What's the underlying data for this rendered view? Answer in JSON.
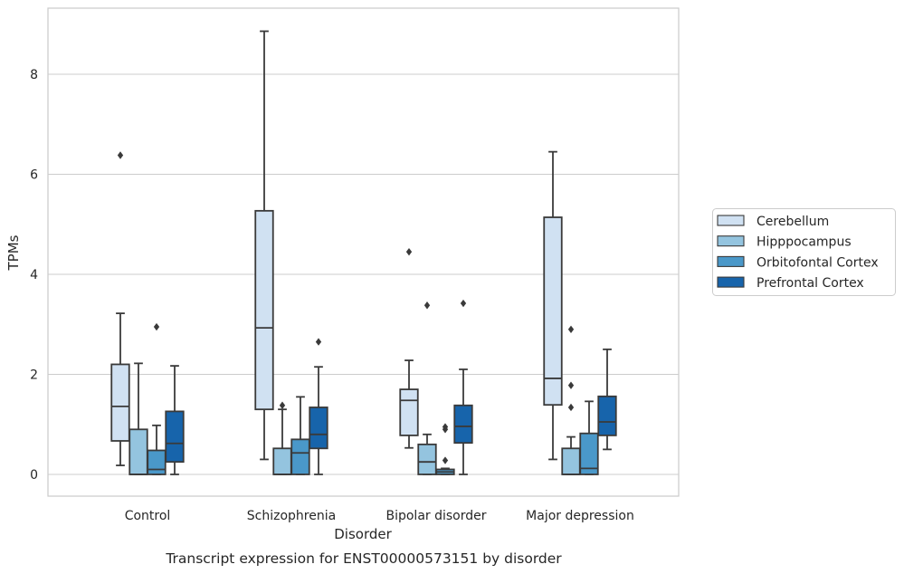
{
  "chart_data": {
    "type": "box",
    "title": "",
    "caption": "Transcript expression for ENST00000573151 by disorder",
    "xlabel": "Disorder",
    "ylabel": "TPMs",
    "ylim": [
      -0.43,
      9.3
    ],
    "yticks": [
      0,
      2,
      4,
      6,
      8
    ],
    "grid": "horizontal",
    "legend_position": "right",
    "categories": [
      "Control",
      "Schizophrenia",
      "Bipolar disorder",
      "Major depression"
    ],
    "series": [
      {
        "name": "Cerebellum",
        "color": "#d0e1f2",
        "boxes": [
          {
            "whislo": 0.18,
            "q1": 0.67,
            "med": 1.36,
            "q3": 2.2,
            "whishi": 3.22,
            "fliers": [
              6.38
            ]
          },
          {
            "whislo": 0.3,
            "q1": 1.3,
            "med": 2.93,
            "q3": 5.27,
            "whishi": 8.86,
            "fliers": []
          },
          {
            "whislo": 0.53,
            "q1": 0.78,
            "med": 1.48,
            "q3": 1.7,
            "whishi": 2.28,
            "fliers": [
              4.45
            ]
          },
          {
            "whislo": 0.3,
            "q1": 1.39,
            "med": 1.92,
            "q3": 5.14,
            "whishi": 6.45,
            "fliers": []
          }
        ]
      },
      {
        "name": "Hipppocampus",
        "color": "#94c4df",
        "boxes": [
          {
            "whislo": 0.0,
            "q1": 0.0,
            "med": 0.0,
            "q3": 0.9,
            "whishi": 2.22,
            "fliers": []
          },
          {
            "whislo": 0.0,
            "q1": 0.0,
            "med": 0.0,
            "q3": 0.52,
            "whishi": 1.3,
            "fliers": [
              1.38
            ]
          },
          {
            "whislo": 0.0,
            "q1": 0.0,
            "med": 0.25,
            "q3": 0.6,
            "whishi": 0.8,
            "fliers": [
              3.38
            ]
          },
          {
            "whislo": 0.0,
            "q1": 0.0,
            "med": 0.0,
            "q3": 0.52,
            "whishi": 0.75,
            "fliers": [
              1.34,
              1.78,
              2.9
            ]
          }
        ]
      },
      {
        "name": "Orbitofontal Cortex",
        "color": "#4a98c9",
        "boxes": [
          {
            "whislo": 0.0,
            "q1": 0.0,
            "med": 0.1,
            "q3": 0.48,
            "whishi": 0.98,
            "fliers": [
              2.95
            ]
          },
          {
            "whislo": 0.0,
            "q1": 0.0,
            "med": 0.43,
            "q3": 0.7,
            "whishi": 1.55,
            "fliers": []
          },
          {
            "whislo": 0.0,
            "q1": 0.0,
            "med": 0.05,
            "q3": 0.1,
            "whishi": 0.12,
            "fliers": [
              0.28,
              0.9,
              0.95
            ]
          },
          {
            "whislo": 0.0,
            "q1": 0.0,
            "med": 0.12,
            "q3": 0.82,
            "whishi": 1.46,
            "fliers": []
          }
        ]
      },
      {
        "name": "Prefrontal Cortex",
        "color": "#1764ab",
        "boxes": [
          {
            "whislo": 0.0,
            "q1": 0.25,
            "med": 0.62,
            "q3": 1.26,
            "whishi": 2.17,
            "fliers": []
          },
          {
            "whislo": 0.0,
            "q1": 0.52,
            "med": 0.8,
            "q3": 1.34,
            "whishi": 2.15,
            "fliers": [
              2.65
            ]
          },
          {
            "whislo": 0.0,
            "q1": 0.63,
            "med": 0.96,
            "q3": 1.38,
            "whishi": 2.1,
            "fliers": [
              3.42
            ]
          },
          {
            "whislo": 0.5,
            "q1": 0.78,
            "med": 1.05,
            "q3": 1.56,
            "whishi": 2.5,
            "fliers": []
          }
        ]
      }
    ]
  }
}
